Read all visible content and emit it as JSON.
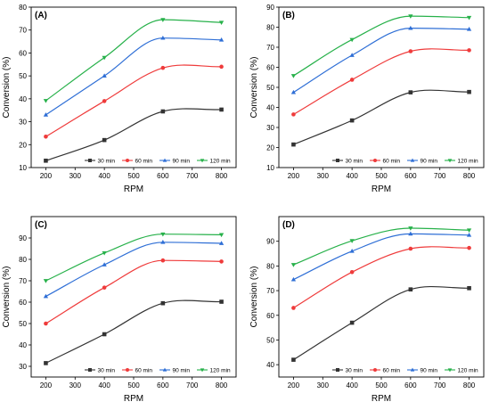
{
  "chart_data": [
    {
      "type": "line",
      "panel": "(A)",
      "x": [
        200,
        400,
        600,
        800
      ],
      "xlabel": "RPM",
      "ylabel": "Conversion (%)",
      "xlim": [
        150,
        850
      ],
      "ylim": [
        10,
        80
      ],
      "xticks": [
        200,
        300,
        400,
        500,
        600,
        700,
        800
      ],
      "yticks": [
        10,
        20,
        30,
        40,
        50,
        60,
        70,
        80
      ],
      "legend": "bottom-right",
      "series": [
        {
          "name": "30 min",
          "color": "#333333",
          "marker": "square",
          "values": [
            13,
            22,
            34.5,
            35.3
          ]
        },
        {
          "name": "60 min",
          "color": "#ef3b3b",
          "marker": "circle",
          "values": [
            23.5,
            39,
            53.5,
            54
          ]
        },
        {
          "name": "90 min",
          "color": "#2f6fd6",
          "marker": "triangle-up",
          "values": [
            33,
            50,
            66.5,
            65.7
          ]
        },
        {
          "name": "120 min",
          "color": "#27b14a",
          "marker": "triangle-down",
          "values": [
            39.2,
            58,
            74.5,
            73.3
          ]
        }
      ]
    },
    {
      "type": "line",
      "panel": "(B)",
      "x": [
        200,
        400,
        600,
        800
      ],
      "xlabel": "RPM",
      "ylabel": "Conversion (%)",
      "xlim": [
        150,
        850
      ],
      "ylim": [
        10,
        90
      ],
      "xticks": [
        200,
        300,
        400,
        500,
        600,
        700,
        800
      ],
      "yticks": [
        10,
        20,
        30,
        40,
        50,
        60,
        70,
        80,
        90
      ],
      "legend": "bottom-right",
      "series": [
        {
          "name": "30 min",
          "color": "#333333",
          "marker": "square",
          "values": [
            21.5,
            33.5,
            47.5,
            47.7
          ]
        },
        {
          "name": "60 min",
          "color": "#ef3b3b",
          "marker": "circle",
          "values": [
            36.5,
            53.8,
            68,
            68.5
          ]
        },
        {
          "name": "90 min",
          "color": "#2f6fd6",
          "marker": "triangle-up",
          "values": [
            47.5,
            66,
            79.5,
            79
          ]
        },
        {
          "name": "120 min",
          "color": "#27b14a",
          "marker": "triangle-down",
          "values": [
            55.8,
            73.8,
            85.5,
            84.8
          ]
        }
      ]
    },
    {
      "type": "line",
      "panel": "(C)",
      "x": [
        200,
        400,
        600,
        800
      ],
      "xlabel": "RPM",
      "ylabel": "Conversion (%)",
      "xlim": [
        150,
        850
      ],
      "ylim": [
        25,
        100
      ],
      "xticks": [
        200,
        300,
        400,
        500,
        600,
        700,
        800
      ],
      "yticks": [
        30,
        40,
        50,
        60,
        70,
        80,
        90
      ],
      "legend": "bottom-right",
      "series": [
        {
          "name": "30 min",
          "color": "#333333",
          "marker": "square",
          "values": [
            31.5,
            45,
            59.5,
            60.2
          ]
        },
        {
          "name": "60 min",
          "color": "#ef3b3b",
          "marker": "circle",
          "values": [
            50,
            66.8,
            79.5,
            79
          ]
        },
        {
          "name": "90 min",
          "color": "#2f6fd6",
          "marker": "triangle-up",
          "values": [
            62.7,
            77.5,
            88,
            87.5
          ]
        },
        {
          "name": "120 min",
          "color": "#27b14a",
          "marker": "triangle-down",
          "values": [
            70,
            83,
            91.8,
            91.5
          ]
        }
      ]
    },
    {
      "type": "line",
      "panel": "(D)",
      "x": [
        200,
        400,
        600,
        800
      ],
      "xlabel": "RPM",
      "ylabel": "Conversion (%)",
      "xlim": [
        150,
        850
      ],
      "ylim": [
        35,
        100
      ],
      "xticks": [
        200,
        300,
        400,
        500,
        600,
        700,
        800
      ],
      "yticks": [
        40,
        50,
        60,
        70,
        80,
        90
      ],
      "legend": "bottom-right",
      "series": [
        {
          "name": "30 min",
          "color": "#333333",
          "marker": "square",
          "values": [
            42,
            57,
            70.5,
            71
          ]
        },
        {
          "name": "60 min",
          "color": "#ef3b3b",
          "marker": "circle",
          "values": [
            63,
            77.5,
            87,
            87.3
          ]
        },
        {
          "name": "90 min",
          "color": "#2f6fd6",
          "marker": "triangle-up",
          "values": [
            74.5,
            86,
            93,
            92.5
          ]
        },
        {
          "name": "120 min",
          "color": "#27b14a",
          "marker": "triangle-down",
          "values": [
            80.5,
            90.2,
            95.3,
            94.5
          ]
        }
      ]
    }
  ]
}
